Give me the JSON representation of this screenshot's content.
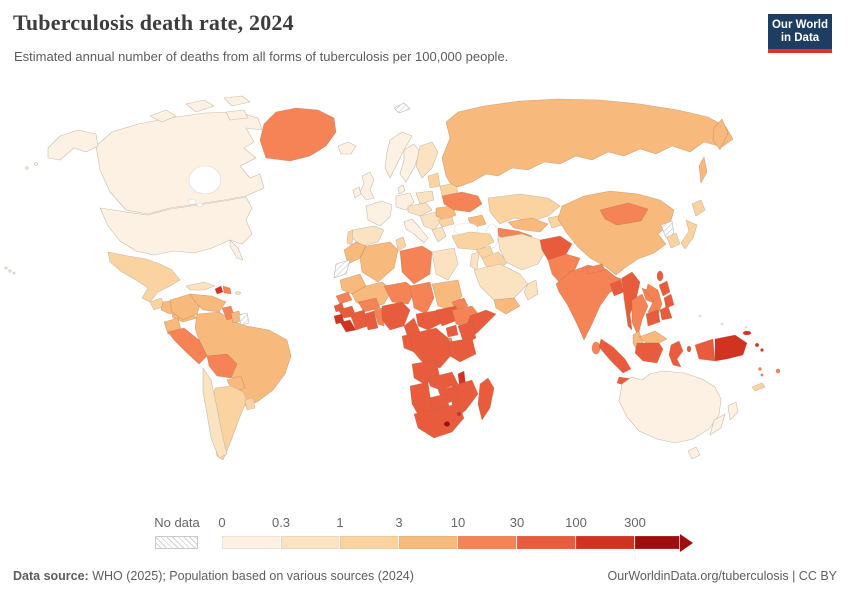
{
  "header": {
    "title": "Tuberculosis death rate, 2024",
    "subtitle": "Estimated annual number of deaths from all forms of tuberculosis per 100,000 people."
  },
  "logo": {
    "line1": "Our World",
    "line2": "in Data",
    "bg_color": "#1d3d63",
    "accent_color": "#d8352e"
  },
  "legend": {
    "no_data_label": "No data",
    "tick_labels": [
      "0",
      "0.3",
      "1",
      "3",
      "10",
      "30",
      "100",
      "300"
    ],
    "segment_widths": [
      59,
      59,
      59,
      59,
      59,
      59,
      59,
      45
    ]
  },
  "footer": {
    "source_label": "Data source:",
    "source_text": " WHO (2025); Population based on various sources (2024)",
    "link_text": "OurWorldinData.org/tuberculosis | CC BY"
  },
  "chart_data": {
    "type": "choropleth_map",
    "title": "Tuberculosis death rate, 2024",
    "unit": "deaths per 100,000 people",
    "year": 2024,
    "projection": "world",
    "legend_position": "bottom",
    "scale_type": "log-threshold",
    "bins": [
      {
        "label": "0",
        "range": "0-0.3",
        "color": "#fdf1e3"
      },
      {
        "label": "0.3",
        "range": "0.3-1",
        "color": "#fbe3c2"
      },
      {
        "label": "1",
        "range": "1-3",
        "color": "#fbd3a0"
      },
      {
        "label": "3",
        "range": "3-10",
        "color": "#f8b97d"
      },
      {
        "label": "10",
        "range": "10-30",
        "color": "#f58355"
      },
      {
        "label": "30",
        "range": "30-100",
        "color": "#e85c3d"
      },
      {
        "label": "100",
        "range": "100-300",
        "color": "#d23220"
      },
      {
        "label": "300",
        "range": "300+",
        "color": "#9e0e0e"
      }
    ],
    "no_data_color": "hatch",
    "palette": {
      "0-0.3": "#fdf1e3",
      "0.3-1": "#fbe3c2",
      "1-3": "#fbd3a0",
      "3-10": "#f8b97d",
      "10-30": "#f58355",
      "30-100": "#e85c3d",
      "100-300": "#d23220",
      "300+": "#9e0e0e"
    },
    "regions": [
      {
        "id": "united-states",
        "name": "United States",
        "bin": "0-0.3"
      },
      {
        "id": "canada",
        "name": "Canada",
        "bin": "0-0.3"
      },
      {
        "id": "greenland",
        "name": "Greenland",
        "bin": "10-30"
      },
      {
        "id": "mexico",
        "name": "Mexico",
        "bin": "1-3"
      },
      {
        "id": "guatemala",
        "name": "Guatemala",
        "bin": "1-3"
      },
      {
        "id": "honduras-nicaragua",
        "name": "Honduras & Nicaragua",
        "bin": "3-10"
      },
      {
        "id": "costa-rica-panama",
        "name": "Costa Rica & Panama",
        "bin": "3-10"
      },
      {
        "id": "cuba",
        "name": "Cuba",
        "bin": "0.3-1"
      },
      {
        "id": "jamaica",
        "name": "Jamaica",
        "bin": "1-3"
      },
      {
        "id": "haiti",
        "name": "Haiti",
        "bin": "100-300"
      },
      {
        "id": "dominican-republic",
        "name": "Dominican Republic",
        "bin": "10-30"
      },
      {
        "id": "puerto-rico",
        "name": "Puerto Rico",
        "bin": "0.3-1"
      },
      {
        "id": "colombia",
        "name": "Colombia",
        "bin": "3-10"
      },
      {
        "id": "venezuela",
        "name": "Venezuela",
        "bin": "3-10"
      },
      {
        "id": "guyana",
        "name": "Guyana",
        "bin": "10-30"
      },
      {
        "id": "suriname",
        "name": "Suriname",
        "bin": "3-10"
      },
      {
        "id": "french-guiana",
        "name": "French Guiana",
        "bin": "no-data"
      },
      {
        "id": "ecuador",
        "name": "Ecuador",
        "bin": "3-10"
      },
      {
        "id": "peru",
        "name": "Peru",
        "bin": "10-30"
      },
      {
        "id": "brazil",
        "name": "Brazil",
        "bin": "3-10"
      },
      {
        "id": "bolivia",
        "name": "Bolivia",
        "bin": "10-30"
      },
      {
        "id": "paraguay",
        "name": "Paraguay",
        "bin": "3-10"
      },
      {
        "id": "chile",
        "name": "Chile",
        "bin": "0.3-1"
      },
      {
        "id": "argentina",
        "name": "Argentina",
        "bin": "1-3"
      },
      {
        "id": "uruguay",
        "name": "Uruguay",
        "bin": "1-3"
      },
      {
        "id": "iceland",
        "name": "Iceland",
        "bin": "0-0.3"
      },
      {
        "id": "united-kingdom",
        "name": "United Kingdom",
        "bin": "0-0.3"
      },
      {
        "id": "ireland",
        "name": "Ireland",
        "bin": "0-0.3"
      },
      {
        "id": "norway",
        "name": "Norway",
        "bin": "0-0.3"
      },
      {
        "id": "sweden",
        "name": "Sweden",
        "bin": "0-0.3"
      },
      {
        "id": "finland",
        "name": "Finland",
        "bin": "0.3-1"
      },
      {
        "id": "denmark",
        "name": "Denmark",
        "bin": "0-0.3"
      },
      {
        "id": "france",
        "name": "France",
        "bin": "0-0.3"
      },
      {
        "id": "spain",
        "name": "Spain",
        "bin": "0.3-1"
      },
      {
        "id": "portugal",
        "name": "Portugal",
        "bin": "1-3"
      },
      {
        "id": "germany",
        "name": "Germany",
        "bin": "0-0.3"
      },
      {
        "id": "italy",
        "name": "Italy",
        "bin": "0-0.3"
      },
      {
        "id": "poland",
        "name": "Poland",
        "bin": "0.3-1"
      },
      {
        "id": "central-europe",
        "name": "Central Europe",
        "bin": "0.3-1"
      },
      {
        "id": "balkans",
        "name": "Balkans",
        "bin": "0.3-1"
      },
      {
        "id": "greece",
        "name": "Greece",
        "bin": "0.3-1"
      },
      {
        "id": "romania",
        "name": "Romania",
        "bin": "3-10"
      },
      {
        "id": "bulgaria",
        "name": "Bulgaria",
        "bin": "1-3"
      },
      {
        "id": "baltic-states",
        "name": "Baltic states",
        "bin": "1-3"
      },
      {
        "id": "belarus",
        "name": "Belarus",
        "bin": "1-3"
      },
      {
        "id": "ukraine",
        "name": "Ukraine",
        "bin": "10-30"
      },
      {
        "id": "svalbard",
        "name": "Svalbard",
        "bin": "no-data"
      },
      {
        "id": "russia",
        "name": "Russia",
        "bin": "3-10"
      },
      {
        "id": "kazakhstan",
        "name": "Kazakhstan",
        "bin": "1-3"
      },
      {
        "id": "uzbekistan",
        "name": "Uzbekistan",
        "bin": "3-10"
      },
      {
        "id": "turkmenistan",
        "name": "Turkmenistan",
        "bin": "10-30"
      },
      {
        "id": "kyrgyzstan-tajikistan",
        "name": "Kyrgyzstan & Tajikistan",
        "bin": "1-3"
      },
      {
        "id": "caucasus",
        "name": "Caucasus",
        "bin": "3-10"
      },
      {
        "id": "turkey",
        "name": "Turkey",
        "bin": "1-3"
      },
      {
        "id": "syria",
        "name": "Syria",
        "bin": "1-3"
      },
      {
        "id": "iraq",
        "name": "Iraq",
        "bin": "1-3"
      },
      {
        "id": "israel-jordan",
        "name": "Israel & Jordan",
        "bin": "0.3-1"
      },
      {
        "id": "saudi-arabia",
        "name": "Saudi Arabia",
        "bin": "0.3-1"
      },
      {
        "id": "yemen",
        "name": "Yemen",
        "bin": "3-10"
      },
      {
        "id": "oman",
        "name": "Oman",
        "bin": "0.3-1"
      },
      {
        "id": "iran",
        "name": "Iran",
        "bin": "0.3-1"
      },
      {
        "id": "afghanistan",
        "name": "Afghanistan",
        "bin": "30-100"
      },
      {
        "id": "pakistan",
        "name": "Pakistan",
        "bin": "10-30"
      },
      {
        "id": "india",
        "name": "India",
        "bin": "10-30"
      },
      {
        "id": "nepal",
        "name": "Nepal",
        "bin": "10-30"
      },
      {
        "id": "bangladesh",
        "name": "Bangladesh",
        "bin": "30-100"
      },
      {
        "id": "sri-lanka",
        "name": "Sri Lanka",
        "bin": "10-30"
      },
      {
        "id": "myanmar",
        "name": "Myanmar",
        "bin": "30-100"
      },
      {
        "id": "thailand",
        "name": "Thailand",
        "bin": "10-30"
      },
      {
        "id": "laos",
        "name": "Laos",
        "bin": "10-30"
      },
      {
        "id": "vietnam",
        "name": "Vietnam",
        "bin": "10-30"
      },
      {
        "id": "cambodia",
        "name": "Cambodia",
        "bin": "30-100"
      },
      {
        "id": "malaysia",
        "name": "Malaysia",
        "bin": "3-10"
      },
      {
        "id": "china",
        "name": "China",
        "bin": "3-10"
      },
      {
        "id": "mongolia",
        "name": "Mongolia",
        "bin": "10-30"
      },
      {
        "id": "north-korea",
        "name": "North Korea",
        "bin": "no-data"
      },
      {
        "id": "south-korea",
        "name": "South Korea",
        "bin": "1-3"
      },
      {
        "id": "japan",
        "name": "Japan",
        "bin": "1-3"
      },
      {
        "id": "taiwan",
        "name": "Taiwan",
        "bin": "30-100"
      },
      {
        "id": "philippines",
        "name": "Philippines",
        "bin": "30-100"
      },
      {
        "id": "indonesia",
        "name": "Indonesia",
        "bin": "30-100"
      },
      {
        "id": "papua-new-guinea",
        "name": "Papua New Guinea",
        "bin": "100-300"
      },
      {
        "id": "timor-leste",
        "name": "Timor-Leste",
        "bin": "100-300"
      },
      {
        "id": "solomon-islands",
        "name": "Solomon Islands",
        "bin": "100-300"
      },
      {
        "id": "vanuatu",
        "name": "Vanuatu",
        "bin": "10-30"
      },
      {
        "id": "fiji",
        "name": "Fiji",
        "bin": "10-30"
      },
      {
        "id": "new-caledonia",
        "name": "New Caledonia",
        "bin": "1-3"
      },
      {
        "id": "australia",
        "name": "Australia",
        "bin": "0-0.3"
      },
      {
        "id": "new-zealand",
        "name": "New Zealand",
        "bin": "0-0.3"
      },
      {
        "id": "morocco",
        "name": "Morocco",
        "bin": "3-10"
      },
      {
        "id": "western-sahara",
        "name": "Western Sahara",
        "bin": "no-data"
      },
      {
        "id": "algeria",
        "name": "Algeria",
        "bin": "3-10"
      },
      {
        "id": "tunisia",
        "name": "Tunisia",
        "bin": "1-3"
      },
      {
        "id": "libya",
        "name": "Libya",
        "bin": "10-30"
      },
      {
        "id": "egypt",
        "name": "Egypt",
        "bin": "0.3-1"
      },
      {
        "id": "mauritania",
        "name": "Mauritania",
        "bin": "3-10"
      },
      {
        "id": "mali",
        "name": "Mali",
        "bin": "3-10"
      },
      {
        "id": "burkina-faso",
        "name": "Burkina Faso",
        "bin": "10-30"
      },
      {
        "id": "niger",
        "name": "Niger",
        "bin": "10-30"
      },
      {
        "id": "chad",
        "name": "Chad",
        "bin": "10-30"
      },
      {
        "id": "sudan",
        "name": "Sudan",
        "bin": "3-10"
      },
      {
        "id": "eritrea",
        "name": "Eritrea",
        "bin": "10-30"
      },
      {
        "id": "djibouti",
        "name": "Djibouti",
        "bin": "100-300"
      },
      {
        "id": "senegal",
        "name": "Senegal",
        "bin": "10-30"
      },
      {
        "id": "guinea-bissau",
        "name": "Guinea-Bissau",
        "bin": "30-100"
      },
      {
        "id": "guinea",
        "name": "Guinea",
        "bin": "30-100"
      },
      {
        "id": "sierra-leone",
        "name": "Sierra Leone",
        "bin": "100-300"
      },
      {
        "id": "liberia",
        "name": "Liberia",
        "bin": "100-300"
      },
      {
        "id": "cote-divoire",
        "name": "Cote d'Ivoire",
        "bin": "30-100"
      },
      {
        "id": "ghana",
        "name": "Ghana",
        "bin": "30-100"
      },
      {
        "id": "togo-benin",
        "name": "Togo & Benin",
        "bin": "10-30"
      },
      {
        "id": "nigeria",
        "name": "Nigeria",
        "bin": "30-100"
      },
      {
        "id": "cameroon",
        "name": "Cameroon",
        "bin": "30-100"
      },
      {
        "id": "central-african-republic",
        "name": "Central African Republic",
        "bin": "30-100"
      },
      {
        "id": "south-sudan",
        "name": "South Sudan",
        "bin": "30-100"
      },
      {
        "id": "ethiopia",
        "name": "Ethiopia",
        "bin": "10-30"
      },
      {
        "id": "somalia",
        "name": "Somalia",
        "bin": "30-100"
      },
      {
        "id": "uganda",
        "name": "Uganda",
        "bin": "30-100"
      },
      {
        "id": "kenya",
        "name": "Kenya",
        "bin": "30-100"
      },
      {
        "id": "rwanda-burundi",
        "name": "Rwanda & Burundi",
        "bin": "10-30"
      },
      {
        "id": "congo-gabon",
        "name": "Congo & Gabon",
        "bin": "30-100"
      },
      {
        "id": "dr-congo",
        "name": "DR Congo",
        "bin": "30-100"
      },
      {
        "id": "tanzania",
        "name": "Tanzania",
        "bin": "30-100"
      },
      {
        "id": "angola",
        "name": "Angola",
        "bin": "30-100"
      },
      {
        "id": "zambia",
        "name": "Zambia",
        "bin": "30-100"
      },
      {
        "id": "malawi",
        "name": "Malawi",
        "bin": "100-300"
      },
      {
        "id": "mozambique",
        "name": "Mozambique",
        "bin": "30-100"
      },
      {
        "id": "zimbabwe",
        "name": "Zimbabwe",
        "bin": "30-100"
      },
      {
        "id": "botswana",
        "name": "Botswana",
        "bin": "30-100"
      },
      {
        "id": "namibia",
        "name": "Namibia",
        "bin": "30-100"
      },
      {
        "id": "south-africa",
        "name": "South Africa",
        "bin": "30-100"
      },
      {
        "id": "lesotho",
        "name": "Lesotho",
        "bin": "300+"
      },
      {
        "id": "eswatini",
        "name": "Eswatini",
        "bin": "100-300"
      },
      {
        "id": "madagascar",
        "name": "Madagascar",
        "bin": "30-100"
      }
    ]
  }
}
